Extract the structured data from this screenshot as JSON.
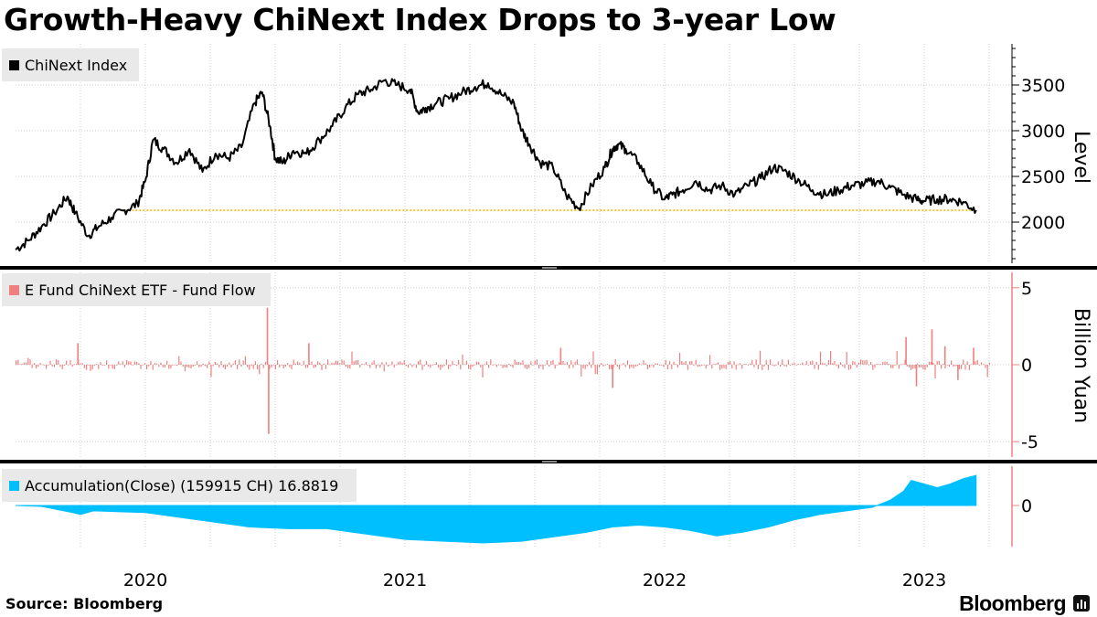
{
  "title": "Growth-Heavy ChiNext Index Drops to 3-year Low",
  "source": "Source:  Bloomberg",
  "brand": "Bloomberg",
  "colors": {
    "index_line": "#000000",
    "fund_flow": "#f08080",
    "accumulation": "#00bfff",
    "reference_line": "#f0b400",
    "gridline": "#cfcfcf",
    "divider": "#000000"
  },
  "chart_data": [
    {
      "type": "line",
      "legend": "ChiNext Index",
      "ylabel": "Level",
      "ylim": [
        1550,
        3950
      ],
      "yticks": [
        "3500",
        "3000",
        "2500",
        "2000"
      ],
      "ytick_values": [
        3500,
        3000,
        2500,
        2000
      ],
      "reference_value": 2130,
      "reference_start": 2019.92,
      "x": [
        2019.5,
        2019.55,
        2019.6,
        2019.65,
        2019.7,
        2019.73,
        2019.78,
        2019.82,
        2019.87,
        2019.92,
        2019.97,
        2020.0,
        2020.03,
        2020.07,
        2020.12,
        2020.17,
        2020.22,
        2020.27,
        2020.32,
        2020.37,
        2020.42,
        2020.45,
        2020.48,
        2020.5,
        2020.53,
        2020.57,
        2020.62,
        2020.67,
        2020.72,
        2020.77,
        2020.82,
        2020.87,
        2020.92,
        2020.97,
        2021.02,
        2021.05,
        2021.08,
        2021.12,
        2021.17,
        2021.22,
        2021.27,
        2021.32,
        2021.37,
        2021.42,
        2021.45,
        2021.48,
        2021.52,
        2021.57,
        2021.62,
        2021.67,
        2021.72,
        2021.77,
        2021.8,
        2021.82,
        2021.85,
        2021.9,
        2021.95,
        2022.0,
        2022.03,
        2022.07,
        2022.12,
        2022.17,
        2022.22,
        2022.27,
        2022.32,
        2022.37,
        2022.42,
        2022.47,
        2022.52,
        2022.57,
        2022.62,
        2022.67,
        2022.72,
        2022.77,
        2022.82,
        2022.87,
        2022.92,
        2022.97,
        2023.0,
        2023.05,
        2023.1,
        2023.15,
        2023.2
      ],
      "y": [
        1700,
        1800,
        1950,
        2100,
        2280,
        2100,
        1850,
        1950,
        2050,
        2130,
        2200,
        2450,
        2900,
        2800,
        2650,
        2800,
        2550,
        2750,
        2700,
        2820,
        3300,
        3420,
        3050,
        2700,
        2650,
        2780,
        2750,
        2900,
        3050,
        3250,
        3400,
        3450,
        3550,
        3500,
        3450,
        3200,
        3250,
        3300,
        3350,
        3420,
        3480,
        3520,
        3400,
        3300,
        3000,
        2850,
        2650,
        2600,
        2300,
        2150,
        2400,
        2600,
        2800,
        2850,
        2800,
        2650,
        2400,
        2250,
        2300,
        2350,
        2450,
        2350,
        2400,
        2300,
        2400,
        2480,
        2600,
        2550,
        2450,
        2350,
        2300,
        2350,
        2400,
        2420,
        2450,
        2380,
        2300,
        2250,
        2230,
        2250,
        2250,
        2220,
        2130
      ]
    },
    {
      "type": "bar",
      "legend": "E Fund ChiNext ETF - Fund Flow",
      "ylabel": "Billion Yuan",
      "ylim": [
        -6,
        6
      ],
      "yticks": [
        "5",
        "0",
        "-5"
      ],
      "ytick_values": [
        5,
        0,
        -5
      ],
      "events": [
        {
          "x": 2020.47,
          "value": 3.7
        },
        {
          "x": 2020.475,
          "value": -4.5
        },
        {
          "x": 2019.74,
          "value": 1.4
        },
        {
          "x": 2020.63,
          "value": 1.4
        },
        {
          "x": 2021.6,
          "value": 1.1
        },
        {
          "x": 2021.8,
          "value": -1.5
        },
        {
          "x": 2022.93,
          "value": 1.8
        },
        {
          "x": 2022.97,
          "value": -1.4
        },
        {
          "x": 2023.03,
          "value": 2.3
        },
        {
          "x": 2023.08,
          "value": 1.2
        },
        {
          "x": 2023.13,
          "value": -1.0
        },
        {
          "x": 2023.19,
          "value": 1.1
        }
      ]
    },
    {
      "type": "area",
      "legend": "Accumulation(Close) (159915 CH) 16.8819",
      "yticks": [
        "0"
      ],
      "ytick_values": [
        0
      ],
      "ylim": [
        -22,
        22
      ],
      "x": [
        2019.5,
        2019.6,
        2019.72,
        2019.75,
        2019.8,
        2020.0,
        2020.2,
        2020.4,
        2020.55,
        2020.7,
        2020.85,
        2021.0,
        2021.15,
        2021.3,
        2021.45,
        2021.6,
        2021.7,
        2021.8,
        2021.9,
        2022.0,
        2022.1,
        2022.2,
        2022.3,
        2022.4,
        2022.5,
        2022.6,
        2022.7,
        2022.8,
        2022.87,
        2022.92,
        2022.95,
        2023.0,
        2023.05,
        2023.1,
        2023.15,
        2023.2
      ],
      "values": [
        0,
        -0.5,
        -4,
        -5,
        -3,
        -4,
        -8,
        -12,
        -13,
        -13,
        -16,
        -19,
        -20,
        -21,
        -20,
        -17,
        -15,
        -12,
        -11,
        -12,
        -14,
        -17,
        -15,
        -12,
        -8,
        -5,
        -3,
        -1,
        3,
        8,
        14,
        12,
        10,
        12,
        15,
        16.9
      ]
    }
  ],
  "x_axis": {
    "labels": [
      "2020",
      "2021",
      "2022",
      "2023"
    ],
    "label_values": [
      2020.0,
      2021.0,
      2022.0,
      2023.0
    ],
    "minor_values": [
      2019.75,
      2020.25,
      2020.5,
      2020.75,
      2021.25,
      2021.5,
      2021.75,
      2022.25,
      2022.5,
      2022.75,
      2023.25
    ],
    "range": [
      2019.5,
      2023.25
    ]
  }
}
